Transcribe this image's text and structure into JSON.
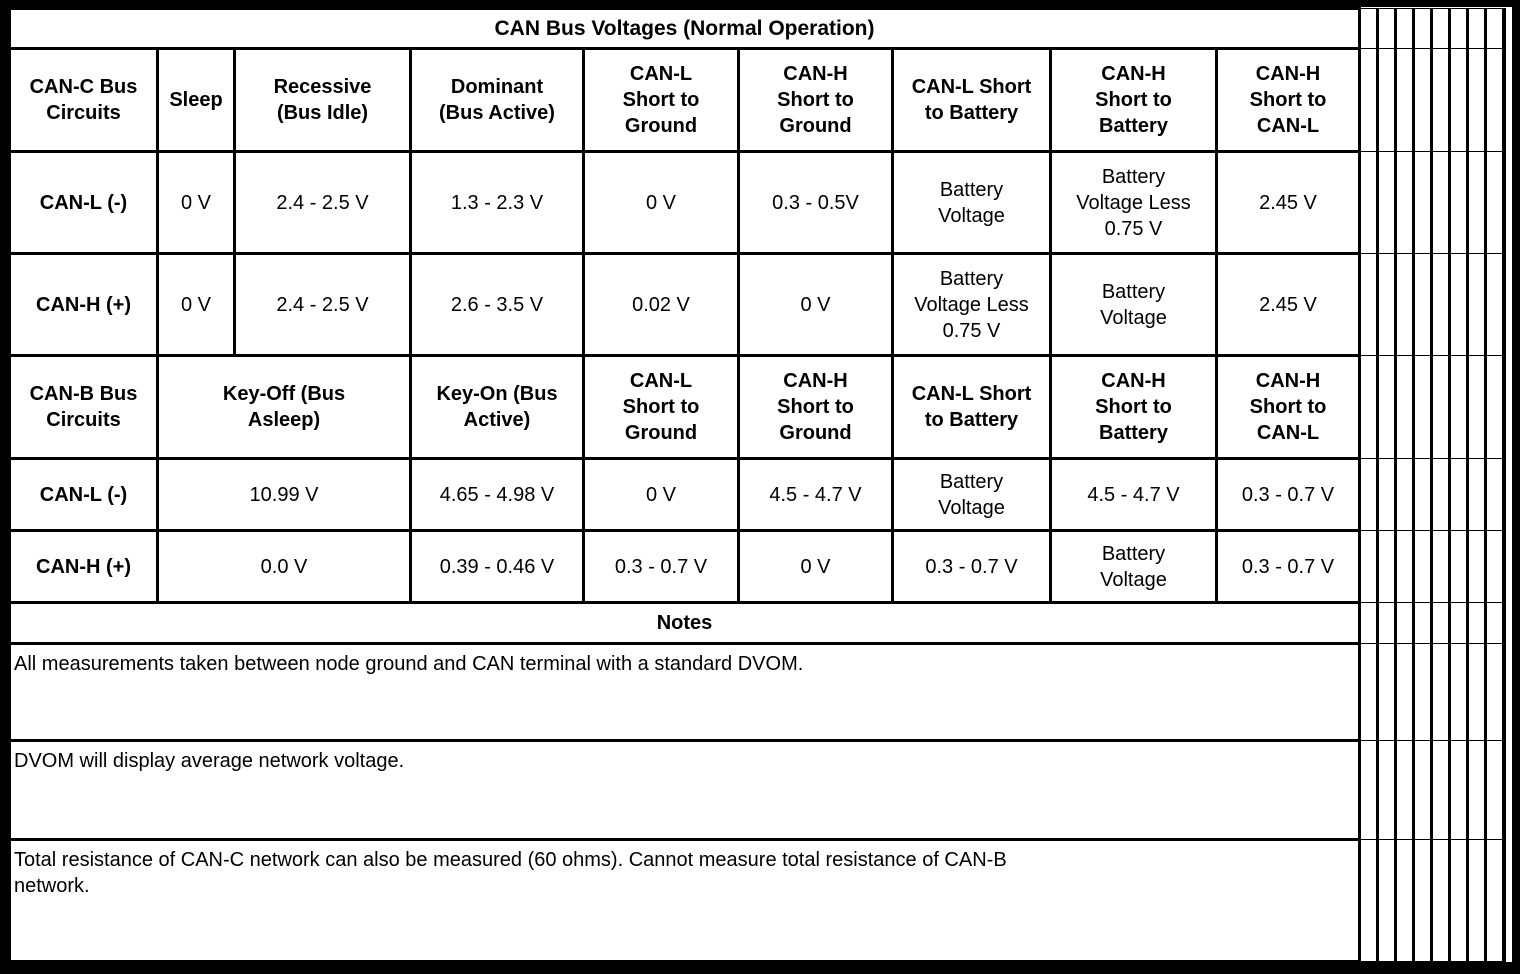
{
  "title": "CAN Bus Voltages (Normal Operation)",
  "can_c": {
    "headers": [
      "CAN-C Bus\nCircuits",
      "Sleep",
      "Recessive\n(Bus Idle)",
      "Dominant\n(Bus Active)",
      "CAN-L\nShort to\nGround",
      "CAN-H\nShort to\nGround",
      "CAN-L Short\nto Battery",
      "CAN-H\nShort to\nBattery",
      "CAN-H\nShort to\nCAN-L"
    ],
    "rows": [
      {
        "label": "CAN-L (-)",
        "values": [
          "0 V",
          "2.4 - 2.5 V",
          "1.3 - 2.3 V",
          "0 V",
          "0.3 - 0.5V",
          "Battery\nVoltage",
          "Battery\nVoltage Less\n0.75 V",
          "2.45 V"
        ]
      },
      {
        "label": "CAN-H (+)",
        "values": [
          "0 V",
          "2.4 - 2.5 V",
          "2.6 - 3.5 V",
          "0.02 V",
          "0 V",
          "Battery\nVoltage Less\n0.75 V",
          "Battery\nVoltage",
          "2.45 V"
        ]
      }
    ]
  },
  "can_b": {
    "headers": [
      "CAN-B Bus\nCircuits",
      "Key-Off (Bus\nAsleep)",
      "Key-On (Bus\nActive)",
      "CAN-L\nShort to\nGround",
      "CAN-H\nShort to\nGround",
      "CAN-L Short\nto Battery",
      "CAN-H\nShort to\nBattery",
      "CAN-H\nShort to\nCAN-L"
    ],
    "rows": [
      {
        "label": "CAN-L (-)",
        "values": [
          "10.99 V",
          "4.65 - 4.98 V",
          "0 V",
          "4.5 - 4.7 V",
          "Battery\nVoltage",
          "4.5 - 4.7 V",
          "0.3 - 0.7 V"
        ]
      },
      {
        "label": "CAN-H (+)",
        "values": [
          "0.0 V",
          "0.39 - 0.46 V",
          "0.3 - 0.7 V",
          "0 V",
          "0.3 - 0.7 V",
          "Battery\nVoltage",
          "0.3 - 0.7 V"
        ]
      }
    ]
  },
  "notes": {
    "header": "Notes",
    "items": [
      "All measurements taken between node ground and CAN terminal with a standard DVOM.",
      "DVOM will display average network voltage.",
      "Total resistance of CAN-C network can also be measured (60 ohms). Cannot measure total resistance of CAN-B\nnetwork."
    ]
  },
  "colors": {
    "border": "#000000",
    "background": "#ffffff",
    "text": "#000000"
  }
}
